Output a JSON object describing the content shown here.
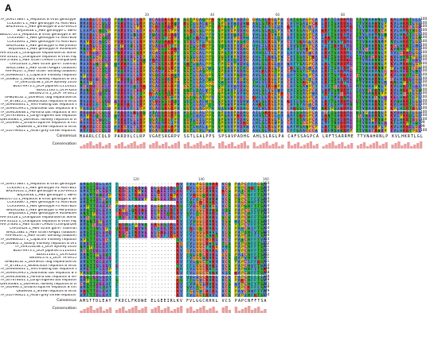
{
  "panel_label": "A",
  "sequence_labels": [
    "YP_009173867.1_Hepatitis B virus genotype D (strain ayw)",
    "CCK33671.1_HBV genotype A1 Mart-B01",
    "BAZ91651.1_HBV genotype B 250-Viet13",
    "BAJ33448.1_HBV genotype C S8PU",
    "BEL01755.1_Hepatitis B virus genotype E SMAW-H0217",
    "CCK33687.1_HBV genotype F2 Mart-B18",
    "CCK33695.1_HBV genotype F4 Mart-B24",
    "BAD91282.1_HBV genotype G HB-JI444G",
    "BAJ33483.1_HBV genotype H 904MEXM",
    "AAF33118.1_Orangutan hepadnavirus Somaf",
    "AAF33122.1_Orangutan hepatitis B virus Papa",
    "AAF57836.1_HBV strain CH926 (Chimpanzee)",
    "CAA10424.1_HBV strain gor97 (Gorilla)",
    "BAQ15382.1_HBV strain KMgb1 (Gibbon)",
    "AAF94247.1_HBV strain Tamang (Gibbon)",
    "YP_009666527.1_Capuchin monkey hepatitis B virus",
    "YP_046802.1_Woolly monkey hepatitis B virus",
    "YP_009553238.1_DCH Sydney 2016",
    "BDD79973.1_DCH Japan/KT111/2021",
    "BDG11100.1_DCH Kara",
    "WEG92574.1_DCH TR-SV15",
    "UMB28132.1_Domestic dog hepadnavirus",
    "YP_873815.1_Woodchuck hepatitis B virus",
    "YP_009046001.1_Tent-making bat hepatitis B virus",
    "YP_009045995.1_Roundleaf bat hepatitis B virus",
    "YP_009056648.1_Pomona bat hepatitis B virus",
    "YP_007678001.1_Long-fingered bat hepatitis B virus",
    "QNV34684.1_Domestic donkey hepatitis B virus",
    "YP_040996.1_Ground squirrel hepatitis B virus",
    "QK68936.1_Shrew hepatitis B virus",
    "YP_010796421.1_Asian grey shrew hepatitis B virus"
  ],
  "block1": {
    "ruler_ticks": [
      "20",
      "40",
      "60",
      "80"
    ],
    "end_positions": [
      "100",
      "100",
      "100",
      "100",
      "100",
      "100",
      "100",
      "100",
      "100",
      "100",
      "100",
      "100",
      "100",
      "100",
      "100",
      "100",
      "100",
      "100",
      "100",
      "100",
      "100",
      "100",
      "100",
      "100",
      "100",
      "100",
      "100",
      "100",
      "99",
      "99",
      "100"
    ],
    "consensus": "MAARLCCQLD PARDVLCLRP VGAESRGRPV SGTLGALPPS SPSAVPADHG AHLSLRGLPA CAFSSAGPCA LRFTSARRME TTVNAHRNLP KVLHKRTLGL"
  },
  "block2": {
    "ruler_ticks": [
      "120",
      "140",
      "160"
    ],
    "end_positions": [
      "154",
      "154",
      "154",
      "154",
      "154",
      "154",
      "154",
      "154",
      "154",
      "154",
      "154",
      "154",
      "154",
      "154",
      "154",
      "154",
      "152",
      "151",
      "151",
      "151",
      "151",
      "151",
      "154",
      "148",
      "148",
      "148",
      "148",
      "145",
      "138",
      "149",
      "154"
    ],
    "consensus": "AMSTTDLEAY FKDCLFKDWE ELGEEIRLKV FVLGGCRHKL VCS PAPCNFFTSA"
  },
  "consensus_label": "Consensus",
  "conservation_label": "Conservation",
  "colors": {
    "hydrophobic": "#6a8fd8",
    "cysteine": "#e88a8a",
    "glycine": "#e8a040",
    "proline": "#d8d020",
    "acidic": "#b060c0",
    "basic": "#e04040",
    "polar": "#40b040",
    "aromatic": "#40b0b0",
    "conservation_bar": "#e8a0a0"
  }
}
